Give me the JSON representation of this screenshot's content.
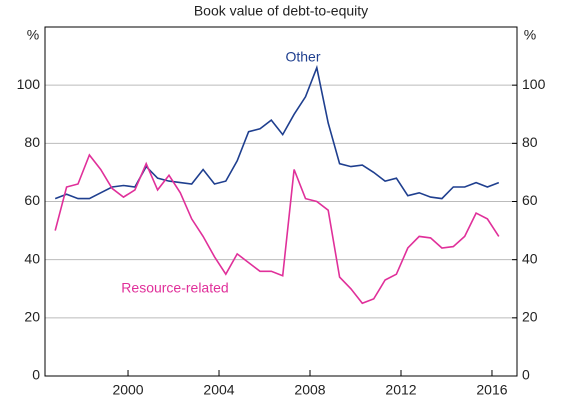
{
  "chart_data": {
    "type": "line",
    "title": "Book value of debt-to-equity",
    "y_unit_label": "%",
    "x": [
      1996.8,
      1997.3,
      1997.8,
      1998.3,
      1998.8,
      1999.3,
      1999.8,
      2000.3,
      2000.8,
      2001.3,
      2001.8,
      2002.3,
      2002.8,
      2003.3,
      2003.8,
      2004.3,
      2004.8,
      2005.3,
      2005.8,
      2006.3,
      2006.8,
      2007.3,
      2007.8,
      2008.3,
      2008.8,
      2009.3,
      2009.8,
      2010.3,
      2010.8,
      2011.3,
      2011.8,
      2012.3,
      2012.8,
      2013.3,
      2013.8,
      2014.3,
      2014.8,
      2015.3,
      2015.8,
      2016.3
    ],
    "series": [
      {
        "name": "Other",
        "color": "#1f3f8f",
        "values": [
          61,
          62.5,
          61,
          61,
          63,
          65,
          65.5,
          65,
          72,
          68,
          67,
          66.5,
          66,
          71,
          66,
          67,
          74,
          84,
          85,
          88,
          83,
          90,
          96,
          106,
          87,
          73,
          72,
          72.5,
          70,
          67,
          68,
          62,
          63,
          61.5,
          61,
          65,
          65,
          66.5,
          65,
          66.5
        ]
      },
      {
        "name": "Resource-related",
        "color": "#e0309a",
        "values": [
          50,
          65,
          66,
          76,
          71,
          64.5,
          61.5,
          64,
          73,
          64,
          69,
          63,
          54,
          48,
          41,
          35,
          42,
          39,
          36,
          36,
          34.5,
          71,
          61,
          60,
          57,
          34,
          30,
          25,
          26.5,
          33,
          35,
          44,
          48,
          47.5,
          44,
          44.5,
          48,
          56,
          54,
          48
        ]
      }
    ],
    "xlim": [
      1996.35,
      2017.1
    ],
    "xticks": [
      2000,
      2004,
      2008,
      2012,
      2016
    ],
    "ylim": [
      0,
      120
    ],
    "yticks": [
      0,
      20,
      40,
      60,
      80,
      100
    ],
    "y2lim": [
      0,
      120
    ],
    "y2ticks": [
      0,
      20,
      40,
      60,
      80,
      100
    ],
    "grid": true
  }
}
